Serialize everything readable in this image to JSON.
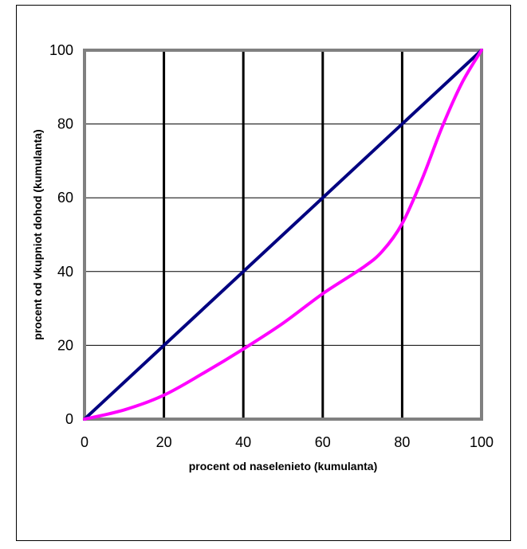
{
  "chart_data": {
    "type": "line",
    "title": "",
    "xlabel": "procent od naselenieto (kumulanta)",
    "ylabel": "procent od vkupniot dohod (kumulanta)",
    "xlim": [
      0,
      100
    ],
    "ylim": [
      0,
      100
    ],
    "xticks": [
      "0",
      "20",
      "40",
      "60",
      "80",
      "100"
    ],
    "yticks": [
      "0",
      "20",
      "40",
      "60",
      "80",
      "100"
    ],
    "vertical_gridlines": [
      20,
      40,
      60,
      80
    ],
    "horizontal_gridlines": [
      20,
      40,
      60,
      80
    ],
    "grid": true,
    "legend": false,
    "series": [
      {
        "color": "#000080",
        "x": [
          0,
          100
        ],
        "y": [
          0,
          100
        ]
      },
      {
        "color": "#ff00ff",
        "x": [
          0,
          10,
          20,
          30,
          40,
          50,
          60,
          70,
          75,
          80,
          85,
          90,
          95,
          100
        ],
        "y": [
          0,
          2.5,
          6.5,
          12.5,
          19,
          26,
          34,
          41,
          45.5,
          53,
          65,
          79,
          91,
          100
        ]
      }
    ]
  },
  "colors": {
    "frame": "#808080",
    "grid_major": "#000000",
    "grid_minor": "#000000",
    "background": "#ffffff"
  }
}
